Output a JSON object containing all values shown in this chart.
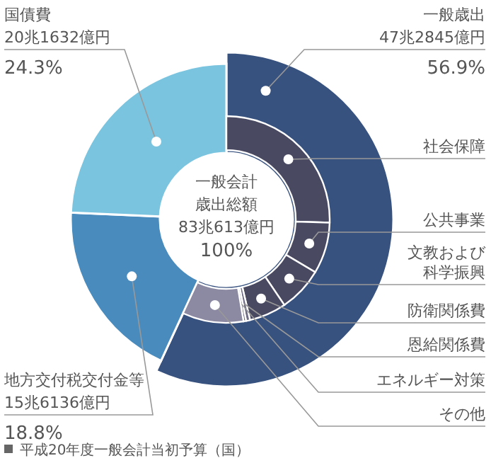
{
  "chart_data": [
    {
      "type": "donut",
      "categories": [
        "一般歳出",
        "地方交付税交付金等",
        "国債費"
      ],
      "values": [
        56.9,
        18.8,
        24.3
      ],
      "colors": [
        "#38527f",
        "#4a8bbd",
        "#7bc4df"
      ],
      "value_labels": [
        "56.9%",
        "18.8%",
        "24.3%"
      ],
      "annotations": [
        "47兆2845億円",
        "15兆6136億円",
        "20兆1632億円",
        "一般会計",
        "歳出総額",
        "83兆613億円",
        "100%",
        "平成20年度一般会計当初予算（国）"
      ]
    },
    {
      "type": "donut",
      "categories": [
        "社会保障",
        "公共事業",
        "文教および科学振興",
        "防衛関係費",
        "恩給関係費",
        "エネルギー対策",
        "その他"
      ],
      "values": [
        44.8,
        14.1,
        12.3,
        10.2,
        1.1,
        0.7,
        16.8
      ],
      "colors": [
        "#4a4962",
        "#4a4962",
        "#4a4962",
        "#4a4962",
        "#6e6b85",
        "#6e6b85",
        "#8c89a3"
      ]
    }
  ]
}
